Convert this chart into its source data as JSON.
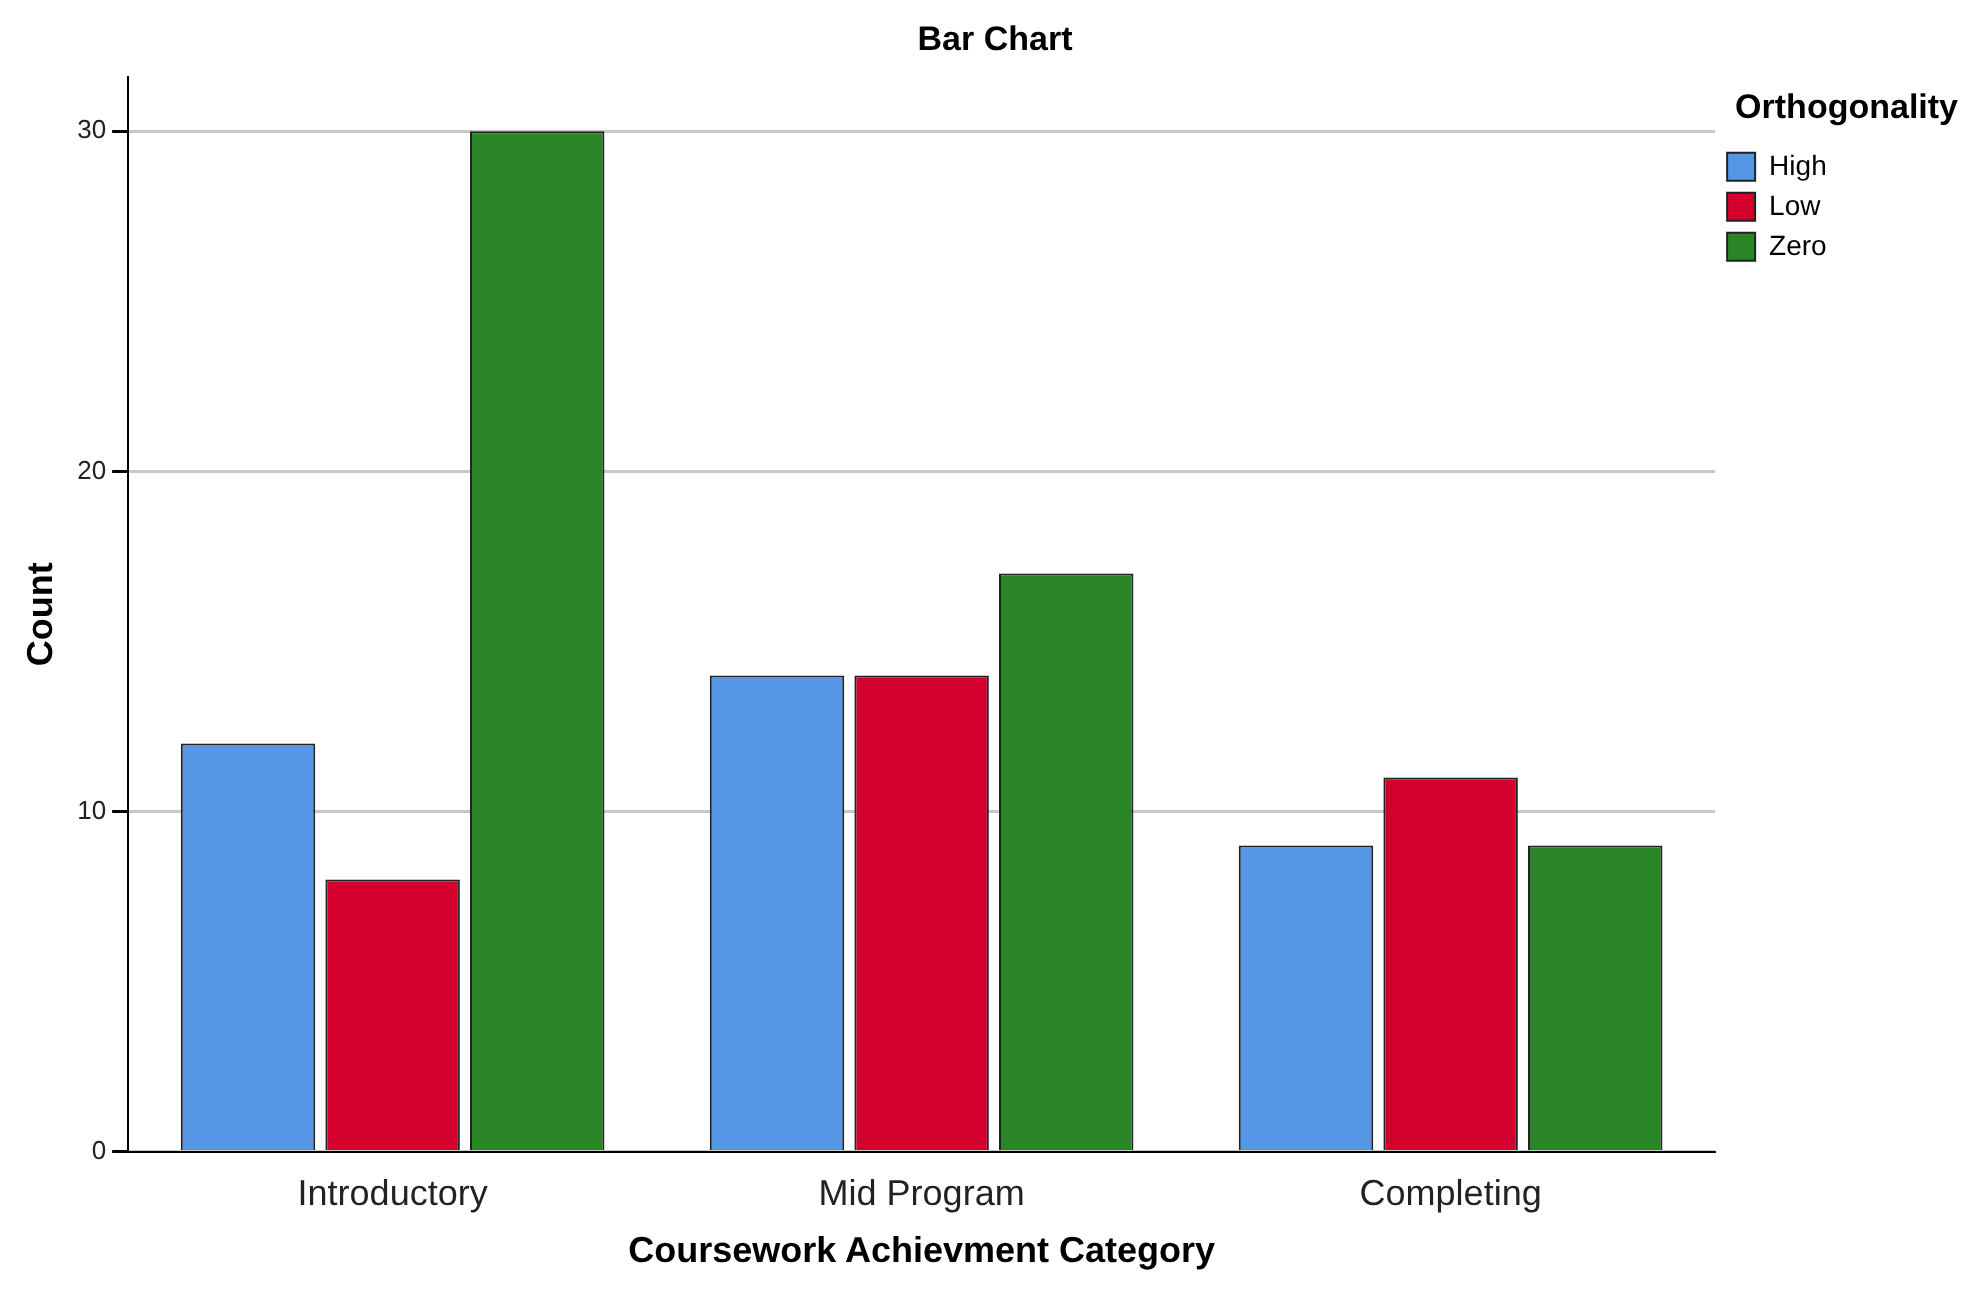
{
  "chart_data": {
    "type": "bar",
    "title": "Bar Chart",
    "xlabel": "Coursework Achievment Category",
    "ylabel": "Count",
    "legend_title": "Orthogonality",
    "categories": [
      "Introductory",
      "Mid Program",
      "Completing"
    ],
    "series": [
      {
        "name": "High",
        "color": "#5596e6",
        "values": [
          12,
          14,
          9
        ]
      },
      {
        "name": "Low",
        "color": "#d3002e",
        "values": [
          8,
          14,
          11
        ]
      },
      {
        "name": "Zero",
        "color": "#2a8527",
        "values": [
          30,
          17,
          9
        ]
      }
    ],
    "ylim": [
      0,
      31.6
    ],
    "yticks": [
      0,
      10,
      20,
      30
    ],
    "grid": "y",
    "legend": "top right"
  }
}
